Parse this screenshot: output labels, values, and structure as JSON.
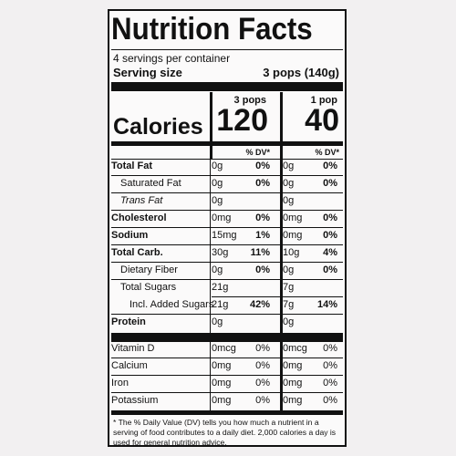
{
  "label": {
    "title": "Nutrition Facts",
    "servings": "4 servings per container",
    "serving_size_label": "Serving size",
    "serving_size_value": "3 pops (140g)",
    "col1_header": "3 pops",
    "col2_header": "1 pop",
    "calories_label": "Calories",
    "calories_col1": "120",
    "calories_col2": "40",
    "dv_header_col1": "% DV*",
    "dv_header_col2": "% DV*",
    "nutrients": [
      {
        "label": "Total Fat",
        "v1": "0g",
        "p1": "0%",
        "v2": "0g",
        "p2": "0%"
      },
      {
        "label": "Saturated Fat",
        "v1": "0g",
        "p1": "0%",
        "v2": "0g",
        "p2": "0%"
      },
      {
        "label": "Trans Fat",
        "v1": "0g",
        "p1": "",
        "v2": "0g",
        "p2": ""
      },
      {
        "label": "Cholesterol",
        "v1": "0mg",
        "p1": "0%",
        "v2": "0mg",
        "p2": "0%"
      },
      {
        "label": "Sodium",
        "v1": "15mg",
        "p1": "1%",
        "v2": "0mg",
        "p2": "0%"
      },
      {
        "label": "Total Carb.",
        "v1": "30g",
        "p1": "11%",
        "v2": "10g",
        "p2": "4%"
      },
      {
        "label": "Dietary Fiber",
        "v1": "0g",
        "p1": "0%",
        "v2": "0g",
        "p2": "0%"
      },
      {
        "label": "Total Sugars",
        "v1": "21g",
        "p1": "",
        "v2": "7g",
        "p2": ""
      },
      {
        "label": "Incl. Added Sugars",
        "v1": "21g",
        "p1": "42%",
        "v2": "7g",
        "p2": "14%"
      },
      {
        "label": "Protein",
        "v1": "0g",
        "p1": "",
        "v2": "0g",
        "p2": ""
      }
    ],
    "vitamins": [
      {
        "label": "Vitamin D",
        "v1": "0mcg",
        "p1": "0%",
        "v2": "0mcg",
        "p2": "0%"
      },
      {
        "label": "Calcium",
        "v1": "0mg",
        "p1": "0%",
        "v2": "0mg",
        "p2": "0%"
      },
      {
        "label": "Iron",
        "v1": "0mg",
        "p1": "0%",
        "v2": "0mg",
        "p2": "0%"
      },
      {
        "label": "Potassium",
        "v1": "0mg",
        "p1": "0%",
        "v2": "0mg",
        "p2": "0%"
      }
    ],
    "footnote": "* The % Daily Value (DV) tells you how much a nutrient in a serving of food contributes to a daily diet. 2,000 calories a day is used for general nutrition advice."
  }
}
